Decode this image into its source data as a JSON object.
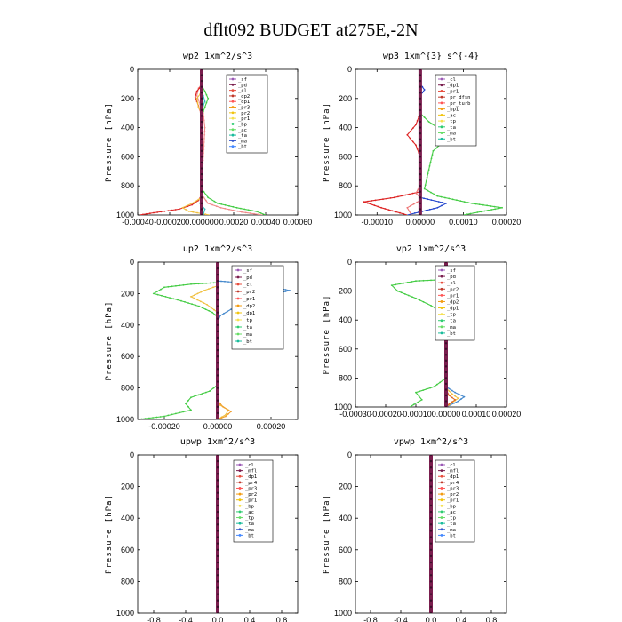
{
  "figure": {
    "title": "dflt092  BUDGET at275E,-2N"
  },
  "chart_data": [
    {
      "type": "line",
      "title": "wp2   1xm^2/s^3",
      "ylabel": "Pressure [hPa]",
      "ylim": [
        0,
        1000
      ],
      "yticks": [
        0,
        200,
        400,
        600,
        800,
        1000
      ],
      "xlim": [
        -0.0004,
        0.0006
      ],
      "xticks": [
        -0.0004,
        -0.0002,
        0,
        0.0002,
        0.0004,
        0.0006
      ],
      "xtick_labels": [
        "-0.00040",
        "-0.00020",
        "0.000000",
        "0.00020",
        "0.00040",
        "0.00060"
      ],
      "legend_position": "top-right",
      "legend": [
        "_sf",
        "_pd",
        "_cl",
        "_dp2",
        "_dp1",
        "_pr3",
        "_pr2",
        "_pr1",
        "_bp",
        "_ac",
        "_ta",
        "_ma",
        "_bt"
      ],
      "series": [
        {
          "name": "_pr1",
          "color": "#f08c8c",
          "x": [
            0,
            0,
            -2e-05,
            -3e-05,
            -1e-05,
            1e-05,
            2e-05,
            0,
            0,
            4e-05,
            0.00012,
            0.00025,
            0.00038
          ],
          "y": [
            0,
            100,
            130,
            180,
            240,
            300,
            400,
            800,
            860,
            920,
            950,
            980,
            1000
          ]
        },
        {
          "name": "_bp",
          "color": "#44cc44",
          "x": [
            0,
            0,
            2e-05,
            4e-05,
            2e-05,
            0,
            0,
            4e-05,
            0.0001,
            0.00022,
            0.00034,
            0.0004
          ],
          "y": [
            0,
            110,
            150,
            200,
            260,
            320,
            820,
            880,
            920,
            950,
            975,
            1000
          ]
        },
        {
          "name": "_dp1",
          "color": "#dd2222",
          "x": [
            0,
            0,
            -3e-05,
            -4e-05,
            -2e-05,
            0,
            0,
            -2e-05,
            -6e-05,
            -0.00014,
            -0.0003,
            -0.00039
          ],
          "y": [
            0,
            110,
            150,
            190,
            250,
            320,
            860,
            900,
            930,
            960,
            985,
            1000
          ]
        },
        {
          "name": "_pr2",
          "color": "#f0c040",
          "x": [
            0,
            0,
            -1e-05,
            -3e-05,
            -2e-05,
            0,
            0,
            -6e-05,
            -0.00012,
            -8e-05,
            5e-05
          ],
          "y": [
            0,
            120,
            170,
            200,
            260,
            300,
            880,
            920,
            950,
            975,
            1000
          ]
        },
        {
          "name": "_ac",
          "color": "#33bbbb",
          "x": [
            0,
            0,
            1e-05,
            2e-05,
            0,
            0,
            -1e-05,
            2e-05,
            1e-05
          ],
          "y": [
            0,
            140,
            180,
            220,
            280,
            860,
            920,
            960,
            1000
          ]
        },
        {
          "name": "_bt",
          "color": "#7a1e4e",
          "x": [
            0,
            0
          ],
          "y": [
            0,
            1000
          ],
          "bold": true
        }
      ]
    },
    {
      "type": "line",
      "title": "wp3   1xm^{3} s^{-4}",
      "ylabel": "Pressure [hPa]",
      "ylim": [
        0,
        1000
      ],
      "yticks": [
        0,
        200,
        400,
        600,
        800,
        1000
      ],
      "xlim": [
        -0.00015,
        0.0002
      ],
      "xticks": [
        -0.0001,
        0,
        0.0001,
        0.0002
      ],
      "xtick_labels": [
        "-0.00010",
        "0.00000",
        "0.00010",
        "0.00020"
      ],
      "legend_position": "top-right",
      "legend": [
        "_cl",
        "_dp1",
        "_pr1",
        "_pr_dfsn",
        "_pr_turb",
        "_bp1",
        "_ac",
        "_tp",
        "_ta",
        "_ma",
        "_bt"
      ],
      "series": [
        {
          "name": "_bp1",
          "color": "#44cc44",
          "x": [
            0,
            0,
            1e-05,
            2e-05,
            5e-05,
            6e-05,
            3e-05,
            1e-05,
            4e-05,
            0.00012,
            0.00019,
            0.0001
          ],
          "y": [
            0,
            300,
            330,
            360,
            420,
            480,
            560,
            820,
            870,
            920,
            950,
            1000
          ]
        },
        {
          "name": "_dp1",
          "color": "#dd2222",
          "x": [
            0,
            0,
            -1e-05,
            -3e-05,
            -1e-05,
            0,
            0,
            -6e-05,
            -0.00013,
            -9e-05,
            -3e-05
          ],
          "y": [
            0,
            300,
            380,
            450,
            520,
            600,
            840,
            880,
            910,
            950,
            1000
          ]
        },
        {
          "name": "_tp",
          "color": "#2244cc",
          "x": [
            0,
            0,
            1e-05,
            0,
            0,
            6e-05,
            4e-05,
            -3e-05
          ],
          "y": [
            0,
            100,
            140,
            180,
            880,
            920,
            950,
            1000
          ]
        },
        {
          "name": "_ta",
          "color": "#ee7777",
          "x": [
            0,
            0,
            -1e-05,
            0,
            0,
            -3e-05,
            -2e-05
          ],
          "y": [
            0,
            800,
            850,
            880,
            900,
            950,
            1000
          ]
        },
        {
          "name": "_bt",
          "color": "#7a1e4e",
          "x": [
            0,
            0
          ],
          "y": [
            0,
            1000
          ],
          "bold": true
        }
      ]
    },
    {
      "type": "line",
      "title": "up2   1xm^2/s^3",
      "ylabel": "Pressure [hPa]",
      "ylim": [
        0,
        1000
      ],
      "yticks": [
        0,
        200,
        400,
        600,
        800,
        1000
      ],
      "xlim": [
        -0.0003,
        0.0003
      ],
      "xticks": [
        -0.0002,
        0,
        0.0002
      ],
      "xtick_labels": [
        "-0.00020",
        "0.00000",
        "0.00020"
      ],
      "legend_position": "top-right",
      "legend": [
        "_sf",
        "_pd",
        "_cl",
        "_pr2",
        "_pr1",
        "_dp2",
        "_dp1",
        "_tp",
        "_ta",
        "_ma",
        "_bt"
      ],
      "series": [
        {
          "name": "_dp1",
          "color": "#44cc44",
          "x": [
            0,
            -0.0001,
            -0.0002,
            -0.00024,
            -0.00015,
            -7e-05,
            -2e-05,
            0,
            0,
            -3e-05,
            -0.0001,
            -0.00012,
            -0.0001,
            -0.0002,
            -0.0003
          ],
          "y": [
            130,
            140,
            160,
            200,
            240,
            280,
            320,
            350,
            780,
            820,
            860,
            900,
            940,
            980,
            1000
          ]
        },
        {
          "name": "_tp",
          "color": "#4488cc",
          "x": [
            0,
            8e-05,
            0.00018,
            0.00027,
            0.00018,
            0.0001,
            5e-05,
            1e-05,
            0,
            0
          ],
          "y": [
            120,
            130,
            150,
            180,
            220,
            260,
            300,
            340,
            380,
            1000
          ]
        },
        {
          "name": "_pr1",
          "color": "#f0c040",
          "x": [
            0,
            -5e-05,
            -0.0001,
            -4e-05,
            0,
            0,
            1e-05,
            4e-05,
            3e-05,
            0
          ],
          "y": [
            150,
            180,
            220,
            270,
            320,
            880,
            910,
            940,
            970,
            1000
          ]
        },
        {
          "name": "_pr2",
          "color": "#f0a030",
          "x": [
            0,
            0,
            2e-05,
            5e-05,
            3e-05,
            0
          ],
          "y": [
            0,
            880,
            920,
            950,
            980,
            1000
          ]
        },
        {
          "name": "_bt",
          "color": "#7a1e4e",
          "x": [
            0,
            0
          ],
          "y": [
            0,
            1000
          ],
          "bold": true
        }
      ]
    },
    {
      "type": "line",
      "title": "vp2   1xm^2/s^3",
      "ylabel": "Pressure [hPa]",
      "ylim": [
        0,
        1000
      ],
      "yticks": [
        0,
        200,
        400,
        600,
        800,
        1000
      ],
      "xlim": [
        -0.0003,
        0.0002
      ],
      "xticks": [
        -0.0003,
        -0.0002,
        -0.0001,
        0,
        0.0001,
        0.0002
      ],
      "xtick_labels": [
        "-0.00030",
        "-0.00020",
        "-0.00010",
        "0.00000",
        "0.00010",
        "0.00020"
      ],
      "legend_position": "top-right",
      "legend": [
        "_sf",
        "_pd",
        "_cl",
        "_pr2",
        "_pr1",
        "_dp2",
        "_dp1",
        "_tp",
        "_ta",
        "_ma",
        "_bt"
      ],
      "series": [
        {
          "name": "_dp1",
          "color": "#44cc44",
          "x": [
            0,
            -0.0001,
            -0.00018,
            -0.00016,
            -0.0001,
            -5e-05,
            -1e-05,
            0,
            0,
            -4e-05,
            -0.0001,
            -8e-05,
            -0.00012
          ],
          "y": [
            120,
            130,
            160,
            200,
            250,
            300,
            350,
            400,
            800,
            860,
            900,
            950,
            1000
          ]
        },
        {
          "name": "_tp",
          "color": "#4488cc",
          "x": [
            0,
            0,
            3e-05,
            6e-05,
            4e-05,
            0
          ],
          "y": [
            0,
            860,
            900,
            930,
            960,
            1000
          ]
        },
        {
          "name": "_pr1",
          "color": "#f0c040",
          "x": [
            0,
            0,
            2e-05,
            4e-05,
            2e-05,
            0
          ],
          "y": [
            0,
            870,
            910,
            940,
            970,
            1000
          ]
        },
        {
          "name": "_pr2",
          "color": "#dd6622",
          "x": [
            0,
            0,
            1e-05,
            3e-05,
            1e-05,
            0
          ],
          "y": [
            0,
            880,
            920,
            950,
            980,
            1000
          ]
        },
        {
          "name": "_bt",
          "color": "#7a1e4e",
          "x": [
            0,
            0
          ],
          "y": [
            0,
            1000
          ],
          "bold": true
        }
      ]
    },
    {
      "type": "line",
      "title": "upwp   1xm^2/s^3",
      "ylabel": "Pressure [hPa]",
      "ylim": [
        0,
        1000
      ],
      "yticks": [
        0,
        200,
        400,
        600,
        800,
        1000
      ],
      "xlim": [
        -1.0,
        1.0
      ],
      "xticks": [
        -0.8,
        -0.4,
        0,
        0.4,
        0.8
      ],
      "xtick_labels": [
        "-0.8",
        "-0.4",
        "0.0",
        "0.4",
        "0.8"
      ],
      "legend_position": "top-right",
      "legend": [
        "_cl",
        "_mfl",
        "_dp1",
        "_pr4",
        "_pr3",
        "_pr2",
        "_pr1",
        "_bp",
        "_ac",
        "_tp",
        "_ta",
        "_ma",
        "_bt"
      ],
      "series": [
        {
          "name": "_bt",
          "color": "#7a1e4e",
          "x": [
            0,
            0
          ],
          "y": [
            0,
            1000
          ],
          "bold": true
        }
      ]
    },
    {
      "type": "line",
      "title": "vpwp   1xm^2/s^3",
      "ylabel": "Pressure [hPa]",
      "ylim": [
        0,
        1000
      ],
      "yticks": [
        0,
        200,
        400,
        600,
        800,
        1000
      ],
      "xlim": [
        -1.0,
        1.0
      ],
      "xticks": [
        -0.8,
        -0.4,
        0,
        0.4,
        0.8
      ],
      "xtick_labels": [
        "-0.8",
        "-0.4",
        "0.0",
        "0.4",
        "0.8"
      ],
      "legend_position": "top-right",
      "legend": [
        "_cl",
        "_mfl",
        "_dp1",
        "_pr4",
        "_pr3",
        "_pr2",
        "_pr1",
        "_bp",
        "_ac",
        "_tp",
        "_ta",
        "_ma",
        "_bt"
      ],
      "series": [
        {
          "name": "_bt",
          "color": "#7a1e4e",
          "x": [
            0,
            0
          ],
          "y": [
            0,
            1000
          ],
          "bold": true
        }
      ]
    }
  ]
}
